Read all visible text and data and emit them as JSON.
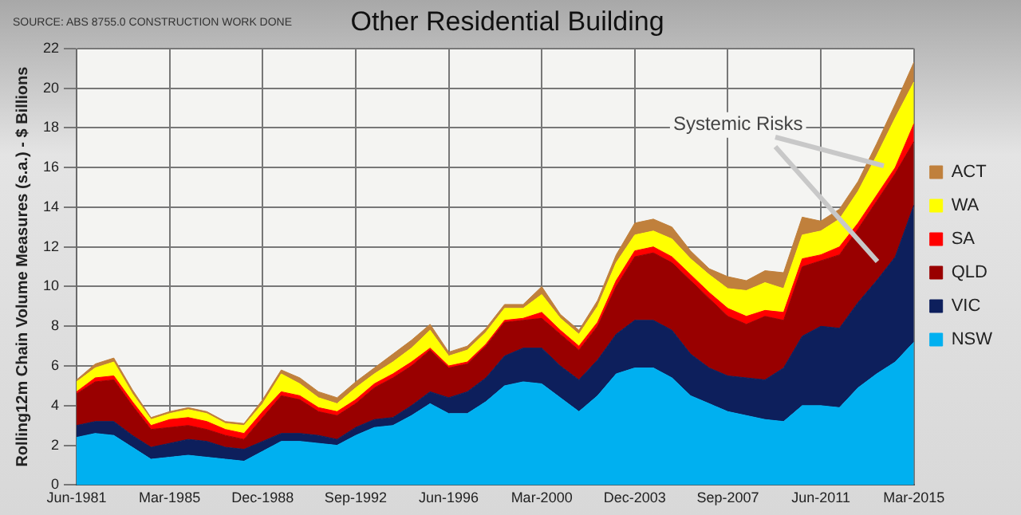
{
  "chart_data": {
    "type": "area",
    "stacked": true,
    "title": "Other Residential Building",
    "ylabel": "Rolling12m Chain Volume Measures (s.a.) - $ Billions",
    "annotations": [
      "SOURCE: ABS 8755.0 CONSTRUCTION WORK DONE",
      "Systemic Risks"
    ],
    "categories": [
      "Jun-1981",
      null,
      null,
      null,
      null,
      "Mar-1985",
      null,
      null,
      null,
      null,
      "Dec-1988",
      null,
      null,
      null,
      null,
      "Sep-1992",
      null,
      null,
      null,
      null,
      "Jun-1996",
      null,
      null,
      null,
      null,
      "Mar-2000",
      null,
      null,
      null,
      null,
      "Dec-2003",
      null,
      null,
      null,
      null,
      "Sep-2007",
      null,
      null,
      null,
      null,
      "Jun-2011",
      null,
      null,
      null,
      null,
      "Mar-2015"
    ],
    "ylim": [
      0,
      22
    ],
    "yticks": [
      0,
      2,
      4,
      6,
      8,
      10,
      12,
      14,
      16,
      18,
      20,
      22
    ],
    "grid": true,
    "legend": "right",
    "series": [
      {
        "name": "NSW",
        "color": "#00b0f0",
        "values": [
          2.4,
          2.6,
          2.5,
          1.9,
          1.3,
          1.4,
          1.5,
          1.4,
          1.3,
          1.2,
          1.7,
          2.2,
          2.2,
          2.1,
          2.0,
          2.5,
          2.9,
          3.0,
          3.5,
          4.1,
          3.6,
          3.6,
          4.2,
          5.0,
          5.2,
          5.1,
          4.4,
          3.7,
          4.5,
          5.6,
          5.9,
          5.9,
          5.4,
          4.5,
          4.1,
          3.7,
          3.5,
          3.3,
          3.2,
          4.0,
          4.0,
          3.9,
          4.9,
          5.6,
          6.2,
          7.2
        ]
      },
      {
        "name": "VIC",
        "color": "#0d1f5c",
        "values": [
          0.6,
          0.6,
          0.7,
          0.6,
          0.6,
          0.7,
          0.8,
          0.8,
          0.6,
          0.6,
          0.5,
          0.4,
          0.4,
          0.4,
          0.3,
          0.4,
          0.4,
          0.4,
          0.5,
          0.6,
          0.8,
          1.1,
          1.2,
          1.5,
          1.7,
          1.8,
          1.6,
          1.6,
          1.8,
          2.0,
          2.4,
          2.4,
          2.4,
          2.1,
          1.8,
          1.8,
          1.9,
          2.0,
          2.7,
          3.5,
          4.0,
          4.0,
          4.3,
          4.7,
          5.3,
          6.9
        ]
      },
      {
        "name": "QLD",
        "color": "#990000",
        "values": [
          1.6,
          2.0,
          2.1,
          1.5,
          0.9,
          0.8,
          0.7,
          0.6,
          0.6,
          0.5,
          1.2,
          1.9,
          1.7,
          1.2,
          1.2,
          1.2,
          1.6,
          2.0,
          2.0,
          2.1,
          1.5,
          1.4,
          1.6,
          1.7,
          1.4,
          1.5,
          1.6,
          1.5,
          1.7,
          2.4,
          3.2,
          3.4,
          3.4,
          3.7,
          3.5,
          3.0,
          2.7,
          3.2,
          2.4,
          3.5,
          3.3,
          3.7,
          3.7,
          4.0,
          4.2,
          3.2
        ]
      },
      {
        "name": "SA",
        "color": "#ff0000",
        "values": [
          0.1,
          0.2,
          0.2,
          0.2,
          0.2,
          0.4,
          0.4,
          0.4,
          0.3,
          0.3,
          0.3,
          0.2,
          0.2,
          0.2,
          0.2,
          0.2,
          0.2,
          0.2,
          0.2,
          0.1,
          0.1,
          0.1,
          0.1,
          0.1,
          0.1,
          0.3,
          0.2,
          0.2,
          0.2,
          0.3,
          0.3,
          0.3,
          0.3,
          0.3,
          0.3,
          0.4,
          0.4,
          0.3,
          0.4,
          0.4,
          0.3,
          0.4,
          0.3,
          0.3,
          0.3,
          0.9
        ]
      },
      {
        "name": "WA",
        "color": "#ffff00",
        "values": [
          0.5,
          0.5,
          0.7,
          0.4,
          0.3,
          0.3,
          0.4,
          0.4,
          0.3,
          0.4,
          0.4,
          0.9,
          0.6,
          0.5,
          0.4,
          0.6,
          0.5,
          0.6,
          0.7,
          0.9,
          0.5,
          0.6,
          0.6,
          0.6,
          0.5,
          0.9,
          0.6,
          0.6,
          0.8,
          0.9,
          0.8,
          0.8,
          0.9,
          0.8,
          0.9,
          1.0,
          1.3,
          1.4,
          1.2,
          1.2,
          1.2,
          1.4,
          1.6,
          2.0,
          2.5,
          2.1
        ]
      },
      {
        "name": "ACT",
        "color": "#c0803c",
        "values": [
          0.1,
          0.2,
          0.2,
          0.2,
          0.1,
          0.1,
          0.1,
          0.1,
          0.1,
          0.1,
          0.2,
          0.2,
          0.3,
          0.3,
          0.3,
          0.3,
          0.3,
          0.4,
          0.4,
          0.3,
          0.2,
          0.2,
          0.2,
          0.2,
          0.2,
          0.4,
          0.2,
          0.2,
          0.3,
          0.4,
          0.6,
          0.6,
          0.6,
          0.4,
          0.3,
          0.6,
          0.5,
          0.6,
          0.8,
          0.9,
          0.5,
          0.5,
          0.5,
          0.6,
          0.7,
          1.0
        ]
      }
    ]
  }
}
